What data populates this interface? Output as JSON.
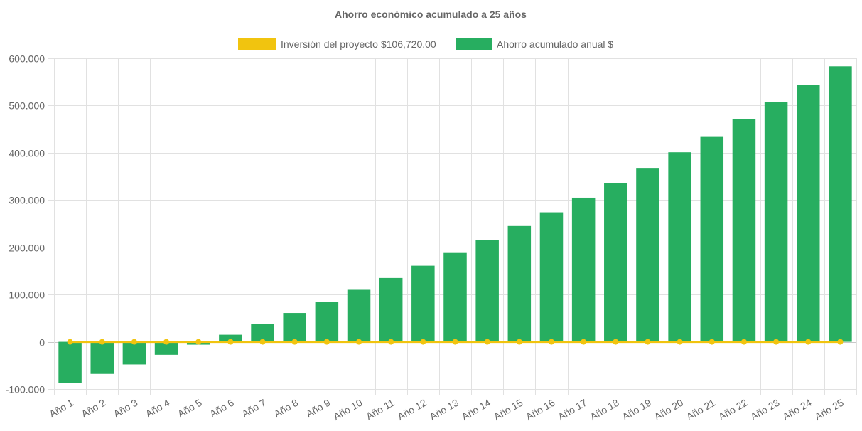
{
  "chart_data": {
    "type": "bar",
    "title": "Ahorro económico acumulado a 25 años",
    "legend_position": "top",
    "grid": true,
    "categories": [
      "Año 1",
      "Año 2",
      "Año 3",
      "Año 4",
      "Año 5",
      "Año 6",
      "Año 7",
      "Año 8",
      "Año 9",
      "Año 10",
      "Año 11",
      "Año 12",
      "Año 13",
      "Año 14",
      "Año 15",
      "Año 16",
      "Año 17",
      "Año 18",
      "Año 19",
      "Año 20",
      "Año 21",
      "Año 22",
      "Año 23",
      "Año 24",
      "Año 25"
    ],
    "ylim": [
      -100000,
      600000
    ],
    "yticks": [
      600000,
      500000,
      400000,
      300000,
      200000,
      100000,
      0,
      -100000
    ],
    "ytick_labels": [
      "600.000",
      "500.000",
      "400.000",
      "300.000",
      "200.000",
      "100.000",
      "0",
      "-100.000"
    ],
    "series": [
      {
        "name": "Inversión del proyecto $106,720.00",
        "type": "line",
        "color": "#f1c40f",
        "values": [
          0,
          0,
          0,
          0,
          0,
          0,
          0,
          0,
          0,
          0,
          0,
          0,
          0,
          0,
          0,
          0,
          0,
          0,
          0,
          0,
          0,
          0,
          0,
          0,
          0
        ]
      },
      {
        "name": "Ahorro acumulado anual $",
        "type": "bar",
        "color": "#27ae60",
        "values": [
          -87000,
          -68000,
          -48000,
          -27500,
          -6000,
          15000,
          38000,
          61000,
          85000,
          110000,
          135000,
          161000,
          188000,
          216000,
          245000,
          274000,
          305000,
          336000,
          368000,
          401000,
          435000,
          471000,
          507000,
          544000,
          583000
        ]
      }
    ]
  }
}
